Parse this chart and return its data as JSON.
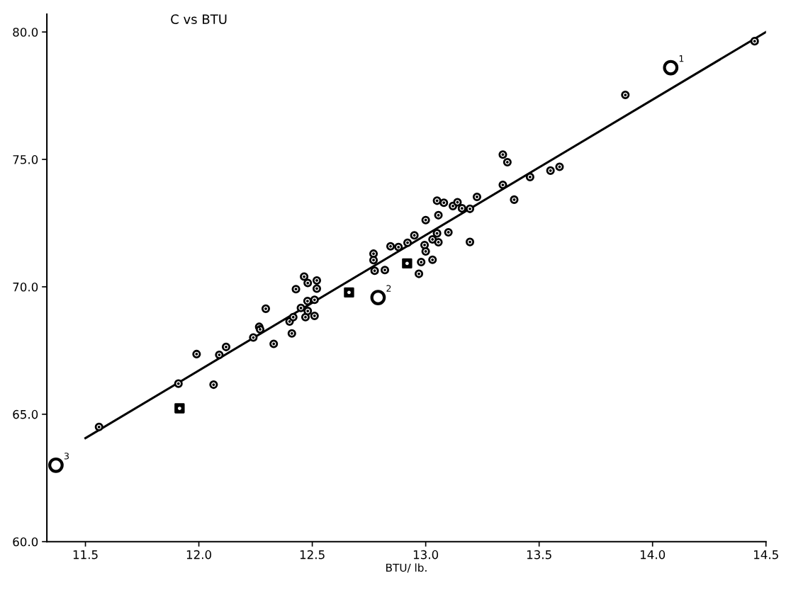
{
  "chart_data": {
    "type": "scatter",
    "title": "C vs BTU",
    "xlabel": "BTU/ lb.",
    "xlim": [
      11.33,
      14.5
    ],
    "ylim": [
      60,
      80.7
    ],
    "xticks": [
      11.5,
      {
        "value": 12.0,
        "label": "12.0"
      },
      12.5,
      {
        "value": 13.0,
        "label": "13.0"
      },
      13.5,
      {
        "value": 14.0,
        "label": "14.0"
      },
      14.5
    ],
    "yticks": [
      {
        "value": 60,
        "label": "60.0"
      },
      {
        "value": 65,
        "label": "65.0"
      },
      {
        "value": 70,
        "label": "70.0"
      },
      {
        "value": 75,
        "label": "75.0"
      },
      {
        "value": 80,
        "label": "80.0"
      }
    ],
    "grid": false,
    "legend": false,
    "series": [
      {
        "marker": "circle",
        "color": "#000000",
        "x": [
          11.56,
          11.91,
          11.99,
          12.065,
          12.09,
          12.12,
          12.24,
          12.266,
          12.27,
          12.295,
          12.33,
          12.4,
          12.41,
          12.416,
          12.428,
          12.45,
          12.464,
          12.47,
          12.479,
          12.48,
          12.48,
          12.51,
          12.51,
          12.52,
          12.52,
          12.77,
          12.77,
          12.775,
          12.82,
          12.845,
          12.88,
          12.92,
          12.95,
          12.97,
          12.98,
          12.995,
          13.0,
          13.0,
          13.03,
          13.03,
          13.05,
          13.05,
          13.056,
          13.056,
          13.08,
          13.1,
          13.12,
          13.14,
          13.16,
          13.195,
          13.195,
          13.226,
          13.34,
          13.34,
          13.36,
          13.39,
          13.46,
          13.55,
          13.59,
          13.88,
          14.45
        ],
        "values": [
          64.5,
          66.2,
          67.36,
          66.16,
          67.33,
          67.64,
          68.01,
          68.43,
          68.33,
          69.14,
          67.76,
          68.64,
          68.17,
          68.81,
          69.91,
          69.17,
          70.4,
          68.81,
          69.44,
          70.15,
          69.05,
          69.49,
          68.86,
          70.25,
          69.93,
          71.3,
          71.05,
          70.63,
          70.66,
          71.59,
          71.56,
          71.73,
          72.02,
          70.51,
          70.97,
          71.64,
          72.62,
          71.39,
          71.86,
          71.06,
          73.38,
          72.1,
          72.81,
          71.75,
          73.3,
          72.14,
          73.17,
          73.32,
          73.08,
          73.06,
          71.76,
          73.53,
          75.19,
          74.0,
          74.89,
          73.42,
          74.31,
          74.56,
          74.71,
          77.53,
          79.64
        ]
      },
      {
        "marker": "square",
        "color": "#000000",
        "x": [
          11.915,
          12.662,
          12.918
        ],
        "values": [
          65.23,
          69.78,
          70.92
        ]
      },
      {
        "type": "bubble",
        "marker": "circle",
        "color": "#000000",
        "x": [
          14.08,
          12.79,
          11.37
        ],
        "values": [
          78.6,
          69.58,
          63.0
        ],
        "sizes": [
          1,
          1,
          1
        ]
      },
      {
        "type": "line",
        "marker": "none",
        "line_style": "solid",
        "color": "#000000",
        "x": [
          11.5,
          14.5
        ],
        "values": [
          64.06,
          80.0
        ]
      }
    ],
    "annotations": [
      {
        "text": "1",
        "x": 14.08,
        "y": 78.6
      },
      {
        "text": "2",
        "x": 12.79,
        "y": 69.58
      },
      {
        "text": "3",
        "x": 11.37,
        "y": 63.0
      }
    ]
  }
}
